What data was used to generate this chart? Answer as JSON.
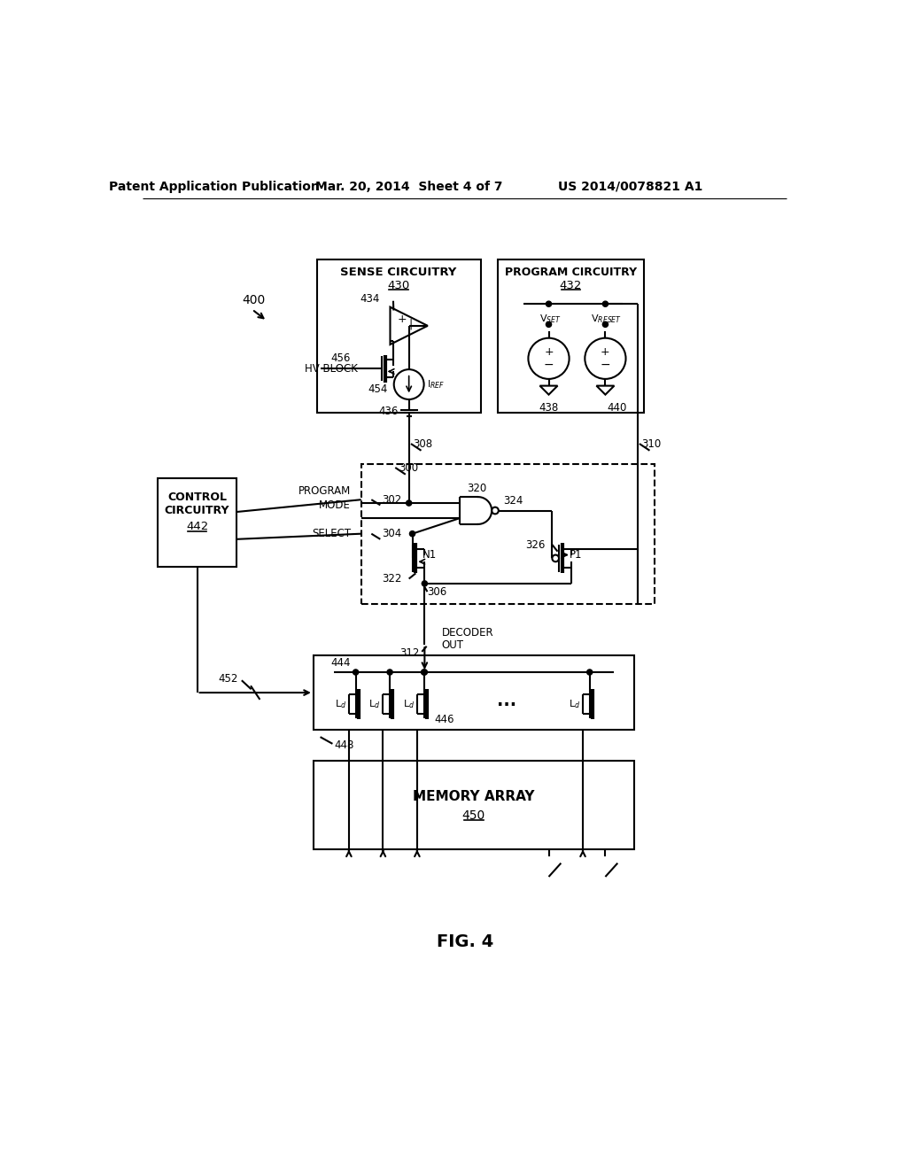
{
  "bg_color": "#ffffff",
  "line_color": "#000000",
  "header_left": "Patent Application Publication",
  "header_center": "Mar. 20, 2014  Sheet 4 of 7",
  "header_right": "US 2014/0078821 A1",
  "fig_label": "FIG. 4"
}
